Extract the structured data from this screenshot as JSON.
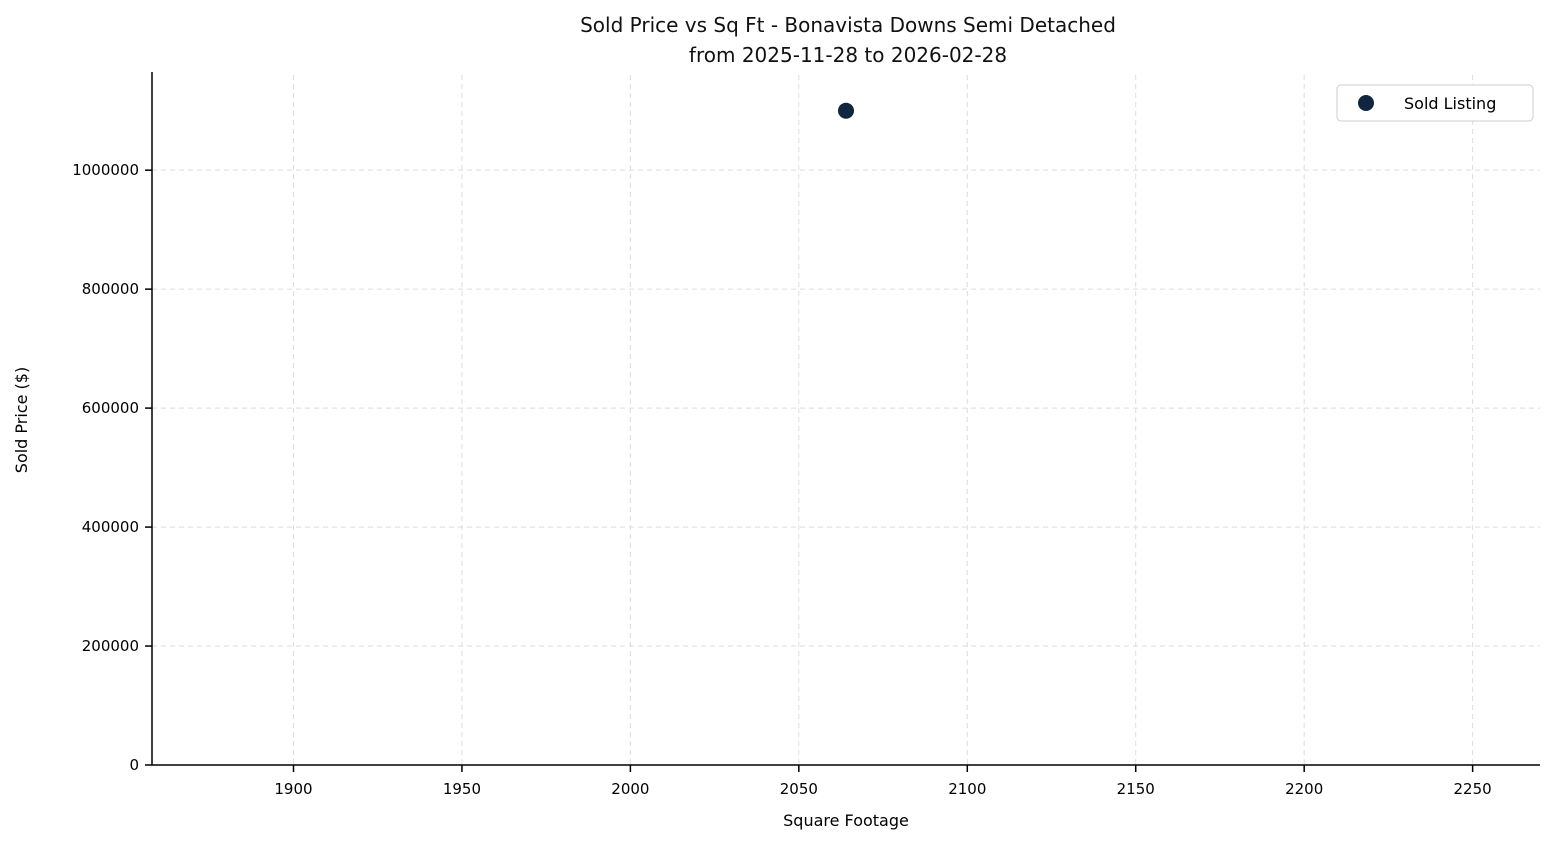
{
  "title": {
    "line1": "Sold Price vs Sq Ft - Bonavista Downs Semi Detached",
    "line2": "from 2025-11-28 to 2026-02-28"
  },
  "chart_data": {
    "type": "scatter",
    "title": "Sold Price vs Sq Ft - Bonavista Downs Semi Detached\nfrom 2025-11-28 to 2026-02-28",
    "xlabel": "Square Footage",
    "ylabel": "Sold Price ($)",
    "xlim": [
      1858,
      2270
    ],
    "ylim": [
      0,
      1160000
    ],
    "xticks": [
      1900,
      1950,
      2000,
      2050,
      2100,
      2150,
      2200,
      2250
    ],
    "yticks": [
      0,
      200000,
      400000,
      600000,
      800000,
      1000000
    ],
    "grid": true,
    "grid_style": "dashed",
    "grid_color": "#dddddd",
    "legend": {
      "position": "upper right",
      "entries": [
        {
          "label": "Sold Listing",
          "color": "#102540"
        }
      ]
    },
    "series": [
      {
        "name": "Sold Listing",
        "color": "#102540",
        "marker": "circle",
        "points": [
          {
            "x": 2064,
            "y": 1100000
          }
        ]
      }
    ]
  }
}
